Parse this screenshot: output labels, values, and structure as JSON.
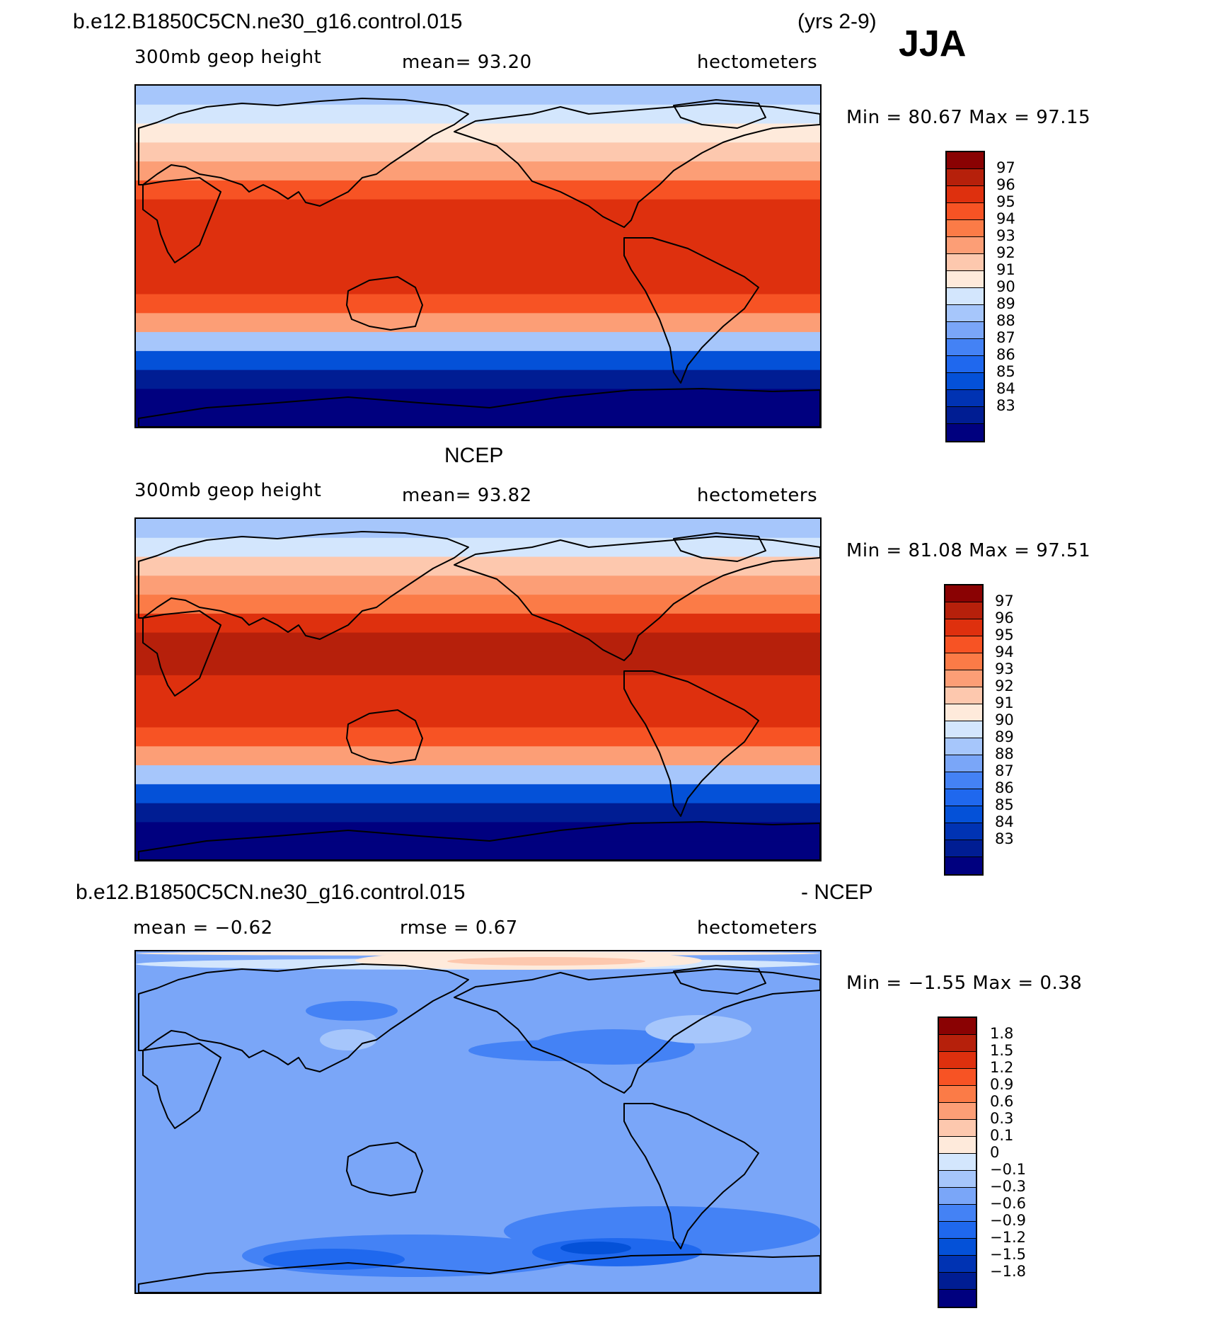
{
  "header": {
    "case_title": "b.e12.B1850C5CN.ne30_g16.control.015",
    "years": "(yrs 2-9)",
    "season": "JJA"
  },
  "colors": {
    "abs_scale": [
      "#00007f",
      "#001d93",
      "#0033b3",
      "#0451d8",
      "#1f68ee",
      "#4482f5",
      "#7aa6f8",
      "#a6c6fb",
      "#d3e6fd",
      "#feeadb",
      "#fdc8ae",
      "#fc9e76",
      "#fb7b47",
      "#f75324",
      "#de300e",
      "#b6200b",
      "#8a0203"
    ],
    "diff_scale": [
      "#00007f",
      "#001d93",
      "#0033b3",
      "#0451d8",
      "#1f68ee",
      "#4482f5",
      "#7aa6f8",
      "#a6c6fb",
      "#d3e6fd",
      "#feeadb",
      "#fdc8ae",
      "#fc9e76",
      "#fb7b47",
      "#f75324",
      "#de300e",
      "#b6200b",
      "#8a0203"
    ]
  },
  "panels": [
    {
      "id": "model",
      "subtitle": "",
      "variable": "300mb geop height",
      "stat1": "mean=  93.20",
      "units": "hectometers",
      "minmax": "Min =  80.67 Max =  97.15",
      "colorbar_labels": [
        "97",
        "96",
        "95",
        "94",
        "93",
        "92",
        "91",
        "90",
        "89",
        "88",
        "87",
        "86",
        "85",
        "84",
        "83"
      ]
    },
    {
      "id": "obs",
      "subtitle": "NCEP",
      "variable": "300mb geop height",
      "stat1": "mean=  93.82",
      "units": "hectometers",
      "minmax": "Min =  81.08 Max =  97.51",
      "colorbar_labels": [
        "97",
        "96",
        "95",
        "94",
        "93",
        "92",
        "91",
        "90",
        "89",
        "88",
        "87",
        "86",
        "85",
        "84",
        "83"
      ]
    },
    {
      "id": "diff",
      "subtitle_left": "b.e12.B1850C5CN.ne30_g16.control.015",
      "subtitle_right": "- NCEP",
      "stat1": "mean =  −0.62",
      "stat2": "rmse =   0.67",
      "units": "hectometers",
      "minmax": "Min =  −1.55 Max =   0.38",
      "colorbar_labels": [
        "1.8",
        "1.5",
        "1.2",
        "0.9",
        "0.6",
        "0.3",
        "0.1",
        "0",
        "−0.1",
        "−0.3",
        "−0.6",
        "−0.9",
        "−1.2",
        "−1.5",
        "−1.8"
      ]
    }
  ],
  "chart_data": [
    {
      "type": "heatmap",
      "title": "300mb geop height",
      "units": "hectometers",
      "mean": 93.2,
      "min": 80.67,
      "max": 97.15,
      "levels": [
        83,
        84,
        85,
        86,
        87,
        88,
        89,
        90,
        91,
        92,
        93,
        94,
        95,
        96,
        97
      ],
      "zonal_profile": {
        "lat": [
          85,
          75,
          65,
          55,
          45,
          35,
          25,
          15,
          0,
          -15,
          -25,
          -35,
          -45,
          -55,
          -65,
          -75,
          -85
        ],
        "value": [
          89.5,
          90.5,
          91.5,
          92.5,
          93.5,
          95,
          96,
          96.5,
          96.6,
          96.5,
          95.5,
          93,
          89,
          85.5,
          83,
          82,
          81
        ]
      }
    },
    {
      "type": "heatmap",
      "title": "NCEP 300mb geop height",
      "units": "hectometers",
      "mean": 93.82,
      "min": 81.08,
      "max": 97.51,
      "levels": [
        83,
        84,
        85,
        86,
        87,
        88,
        89,
        90,
        91,
        92,
        93,
        94,
        95,
        96,
        97
      ],
      "zonal_profile": {
        "lat": [
          85,
          75,
          65,
          55,
          45,
          35,
          25,
          15,
          0,
          -15,
          -25,
          -35,
          -45,
          -55,
          -65,
          -75,
          -85
        ],
        "value": [
          89.5,
          90.8,
          92,
          93.2,
          94.5,
          96,
          97.1,
          97.2,
          96.6,
          96.5,
          95.8,
          93.5,
          89.5,
          85.8,
          83.2,
          82.2,
          81.2
        ]
      }
    },
    {
      "type": "heatmap",
      "title": "b.e12.B1850C5CN.ne30_g16.control.015 - NCEP",
      "units": "hectometers",
      "mean": -0.62,
      "rmse": 0.67,
      "min": -1.55,
      "max": 0.38,
      "levels": [
        -1.8,
        -1.5,
        -1.2,
        -0.9,
        -0.6,
        -0.3,
        -0.1,
        0,
        0.1,
        0.3,
        0.6,
        0.9,
        1.2,
        1.5,
        1.8
      ]
    }
  ]
}
